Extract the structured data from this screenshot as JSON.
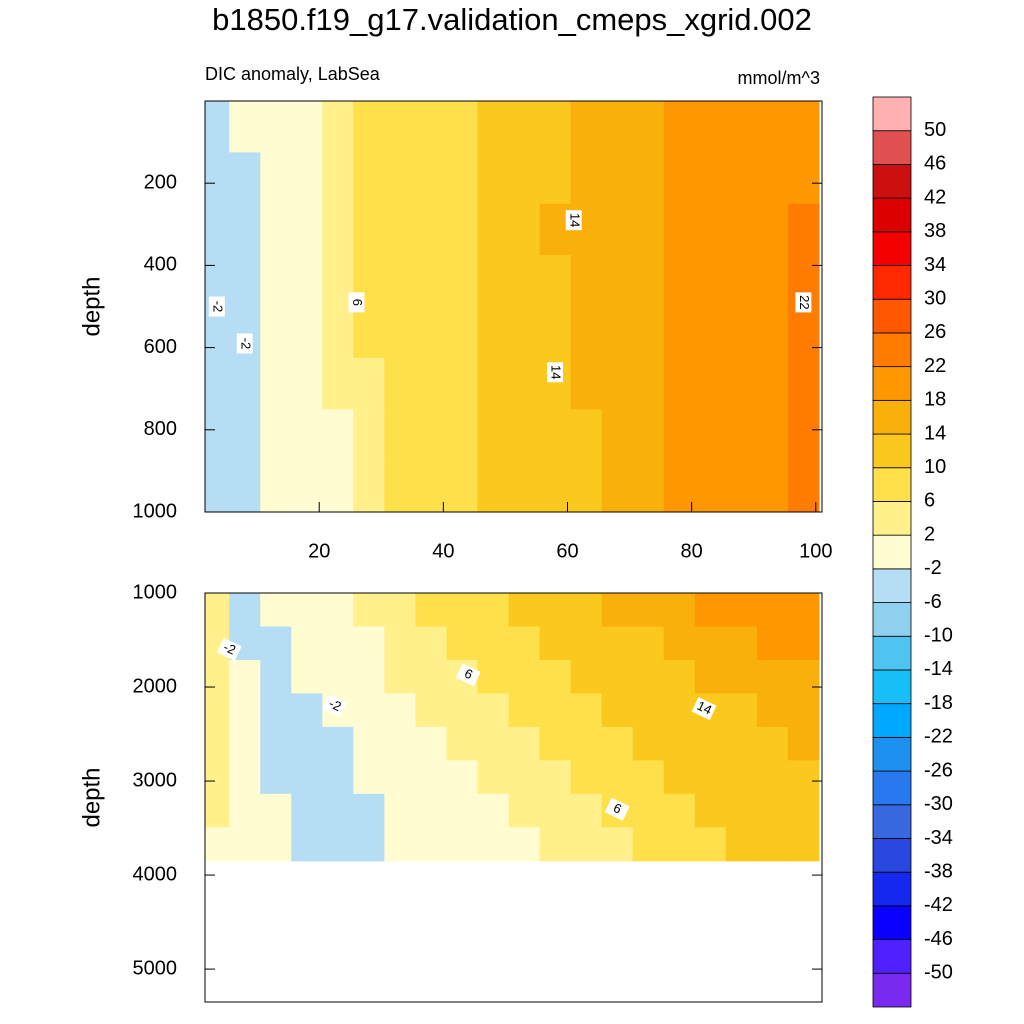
{
  "chart_data": {
    "type": "contour",
    "title": "b1850.f19_g17.validation_cmeps_xgrid.002",
    "subtitle": "DIC anomaly, LabSea",
    "units": "mmol/m^3",
    "colorbar": {
      "levels": [
        -50,
        -46,
        -42,
        -38,
        -34,
        -30,
        -26,
        -22,
        -18,
        -14,
        -10,
        -6,
        -2,
        2,
        6,
        10,
        14,
        18,
        22,
        26,
        30,
        34,
        38,
        42,
        46,
        50
      ],
      "colors": [
        "#7a2af0",
        "#5020ff",
        "#0a00ff",
        "#1428f0",
        "#2848e0",
        "#3868e0",
        "#2878f0",
        "#1e90f0",
        "#00a8ff",
        "#18bef8",
        "#50c4f0",
        "#90d0ef",
        "#b5ddf3",
        "#fffcd2",
        "#fff08c",
        "#fde04a",
        "#fbc81e",
        "#f9b00a",
        "#ff9800",
        "#ff7c00",
        "#ff5800",
        "#ff2800",
        "#f50000",
        "#dd0000",
        "#cc1010",
        "#e05050",
        "#ffb0b0"
      ]
    },
    "panels": [
      {
        "ylabel": "depth",
        "xlim": [
          1.6,
          101
        ],
        "ylim": [
          0,
          1000
        ],
        "xticks": [
          20,
          40,
          60,
          80,
          100
        ],
        "yticks": [
          200,
          400,
          600,
          800,
          1000
        ],
        "x": [
          3,
          8,
          13,
          18,
          23,
          28,
          33,
          38,
          43,
          48,
          53,
          58,
          63,
          68,
          73,
          78,
          83,
          88,
          93,
          98
        ],
        "depth": [
          62.5,
          187.5,
          312.5,
          437.5,
          562.5,
          687.5,
          812.5,
          937.5
        ],
        "z": [
          [
            -4,
            0,
            0,
            0,
            4,
            8,
            8,
            8,
            8,
            12,
            12,
            12,
            16,
            16,
            16,
            20,
            20,
            20,
            20,
            20
          ],
          [
            -4,
            -4,
            0,
            0,
            4,
            8,
            8,
            8,
            8,
            12,
            12,
            12,
            16,
            16,
            16,
            20,
            20,
            20,
            20,
            20
          ],
          [
            -4,
            -4,
            0,
            0,
            4,
            8,
            8,
            8,
            8,
            12,
            12,
            16,
            16,
            16,
            16,
            20,
            20,
            20,
            20,
            24
          ],
          [
            -4,
            -4,
            0,
            0,
            4,
            8,
            8,
            8,
            8,
            12,
            12,
            12,
            16,
            16,
            16,
            20,
            20,
            20,
            20,
            24
          ],
          [
            -4,
            -4,
            0,
            0,
            4,
            8,
            8,
            8,
            8,
            12,
            12,
            12,
            16,
            16,
            16,
            20,
            20,
            20,
            20,
            24
          ],
          [
            -4,
            -4,
            0,
            0,
            4,
            4,
            8,
            8,
            8,
            12,
            12,
            12,
            16,
            16,
            16,
            20,
            20,
            20,
            20,
            24
          ],
          [
            -4,
            -4,
            0,
            0,
            0,
            4,
            8,
            8,
            8,
            12,
            12,
            12,
            12,
            16,
            16,
            20,
            20,
            20,
            20,
            24
          ],
          [
            -4,
            -4,
            0,
            0,
            0,
            4,
            8,
            8,
            8,
            12,
            12,
            12,
            12,
            16,
            16,
            20,
            20,
            20,
            20,
            24
          ]
        ],
        "contour_labels": [
          {
            "level": -2,
            "x": 3.5,
            "depth": 500
          },
          {
            "level": -2,
            "x": 8,
            "depth": 590
          },
          {
            "level": 6,
            "x": 26,
            "depth": 490
          },
          {
            "level": 14,
            "x": 61,
            "depth": 290
          },
          {
            "level": 14,
            "x": 58,
            "depth": 660
          },
          {
            "level": 22,
            "x": 98,
            "depth": 490
          }
        ]
      },
      {
        "ylabel": "depth",
        "xlim": [
          1.6,
          101
        ],
        "ylim": [
          1000,
          5350
        ],
        "yticks": [
          1000,
          2000,
          3000,
          4000,
          5000
        ],
        "x": [
          3,
          8,
          13,
          18,
          23,
          28,
          33,
          38,
          43,
          48,
          53,
          58,
          63,
          68,
          73,
          78,
          83,
          88,
          93,
          98
        ],
        "depth": [
          1178,
          1534,
          1890,
          2246,
          2602,
          2958,
          3314,
          3670
        ],
        "z": [
          [
            4,
            -4,
            0,
            0,
            0,
            4,
            4,
            8,
            8,
            8,
            12,
            12,
            12,
            16,
            16,
            16,
            20,
            20,
            20,
            20
          ],
          [
            4,
            -4,
            -4,
            0,
            0,
            0,
            4,
            4,
            8,
            8,
            8,
            12,
            12,
            12,
            12,
            16,
            16,
            16,
            20,
            20
          ],
          [
            4,
            0,
            -4,
            0,
            0,
            0,
            4,
            4,
            4,
            8,
            8,
            8,
            12,
            12,
            12,
            12,
            16,
            16,
            16,
            16
          ],
          [
            4,
            0,
            -4,
            -4,
            0,
            0,
            0,
            4,
            4,
            4,
            8,
            8,
            8,
            12,
            12,
            12,
            12,
            12,
            16,
            16
          ],
          [
            4,
            0,
            -4,
            -4,
            -4,
            0,
            0,
            0,
            4,
            4,
            4,
            8,
            8,
            8,
            12,
            12,
            12,
            12,
            12,
            16
          ],
          [
            4,
            0,
            -4,
            -4,
            -4,
            0,
            0,
            0,
            0,
            4,
            4,
            4,
            8,
            8,
            8,
            12,
            12,
            12,
            12,
            12
          ],
          [
            4,
            0,
            0,
            -4,
            -4,
            -4,
            0,
            0,
            0,
            0,
            4,
            4,
            4,
            8,
            8,
            8,
            12,
            12,
            12,
            12
          ],
          [
            0,
            0,
            0,
            -4,
            -4,
            -4,
            0,
            0,
            0,
            0,
            0,
            4,
            4,
            4,
            8,
            8,
            8,
            12,
            12,
            12
          ]
        ],
        "contour_labels": [
          {
            "level": -2,
            "x": 5.5,
            "depth": 1600
          },
          {
            "level": -2,
            "x": 22.5,
            "depth": 2200
          },
          {
            "level": 6,
            "x": 44,
            "depth": 1870
          },
          {
            "level": 14,
            "x": 82,
            "depth": 2230
          },
          {
            "level": 6,
            "x": 68,
            "depth": 3300
          }
        ]
      }
    ]
  }
}
